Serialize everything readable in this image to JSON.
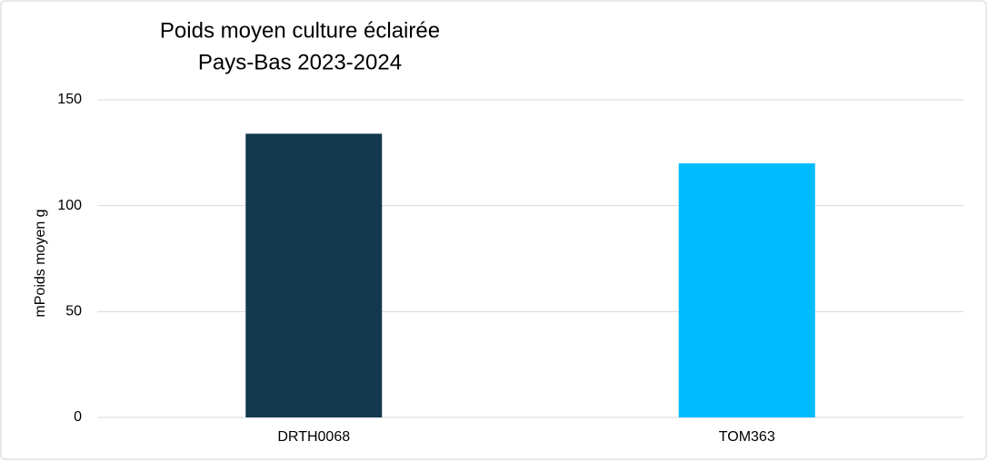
{
  "chart_data": {
    "type": "bar",
    "title": "Poids moyen culture éclairée",
    "subtitle": "Pays-Bas 2023-2024",
    "y_label": "mPoids moyen g",
    "categories": [
      "DRTH0068",
      "TOM363"
    ],
    "values": [
      134,
      120
    ],
    "colors": [
      "#14394f",
      "#00bcff"
    ],
    "ylim": [
      0,
      150
    ],
    "yticks": [
      0,
      50,
      100,
      150
    ],
    "grid": true
  }
}
